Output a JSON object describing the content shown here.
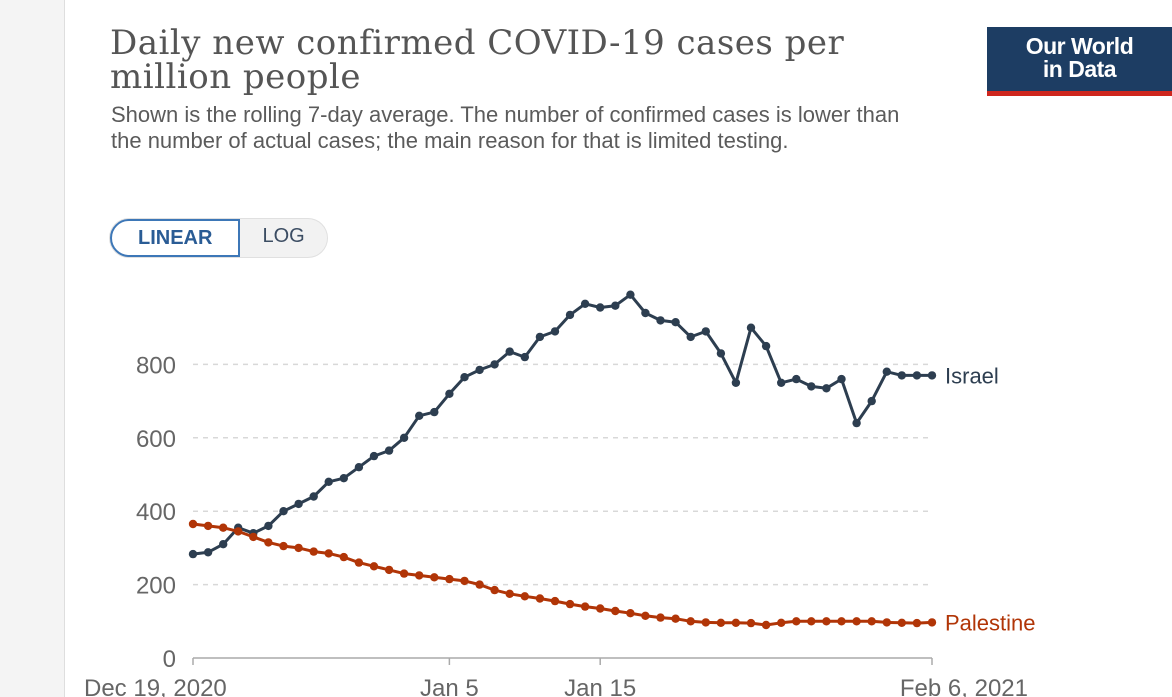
{
  "header": {
    "title": "Daily new confirmed COVID-19 cases per million people",
    "subtitle": "Shown is the rolling 7-day average. The number of confirmed cases is lower than the number of actual cases; the main reason for that is limited testing.",
    "logo_line1": "Our World",
    "logo_line2": "in Data",
    "logo_color": "#1d3d63",
    "logo_accent": "#ce261e"
  },
  "controls": {
    "linear_label": "LINEAR",
    "log_label": "LOG",
    "selected": "LINEAR"
  },
  "chart_data": {
    "type": "line",
    "title": "Daily new confirmed COVID-19 cases per million people",
    "xlabel": "",
    "ylabel": "",
    "x_start": "Dec 19, 2020",
    "x_end": "Feb 6, 2021",
    "x_ticks": [
      {
        "label": "Dec 19, 2020",
        "day": 0
      },
      {
        "label": "Jan 5",
        "day": 17
      },
      {
        "label": "Jan 15",
        "day": 27
      },
      {
        "label": "Feb 6, 2021",
        "day": 49
      }
    ],
    "ylim": [
      0,
      1000
    ],
    "y_ticks": [
      0,
      200,
      400,
      600,
      800
    ],
    "grid": true,
    "series": [
      {
        "name": "Israel",
        "color": "#2d3e50",
        "values": [
          283,
          288,
          310,
          355,
          340,
          360,
          400,
          420,
          440,
          480,
          490,
          520,
          550,
          565,
          600,
          660,
          670,
          720,
          765,
          785,
          800,
          835,
          820,
          875,
          890,
          935,
          965,
          955,
          960,
          990,
          940,
          920,
          915,
          875,
          890,
          830,
          750,
          900,
          850,
          750,
          760,
          740,
          735,
          760,
          640,
          700,
          780,
          770,
          770,
          770
        ]
      },
      {
        "name": "Palestine",
        "color": "#b13507",
        "values": [
          365,
          360,
          355,
          345,
          330,
          315,
          305,
          300,
          290,
          285,
          275,
          260,
          250,
          240,
          230,
          225,
          220,
          215,
          210,
          200,
          185,
          175,
          168,
          162,
          155,
          147,
          140,
          135,
          128,
          122,
          115,
          110,
          107,
          100,
          97,
          96,
          96,
          95,
          90,
          96,
          100,
          100,
          100,
          100,
          100,
          100,
          97,
          96,
          95,
          97
        ]
      }
    ]
  }
}
